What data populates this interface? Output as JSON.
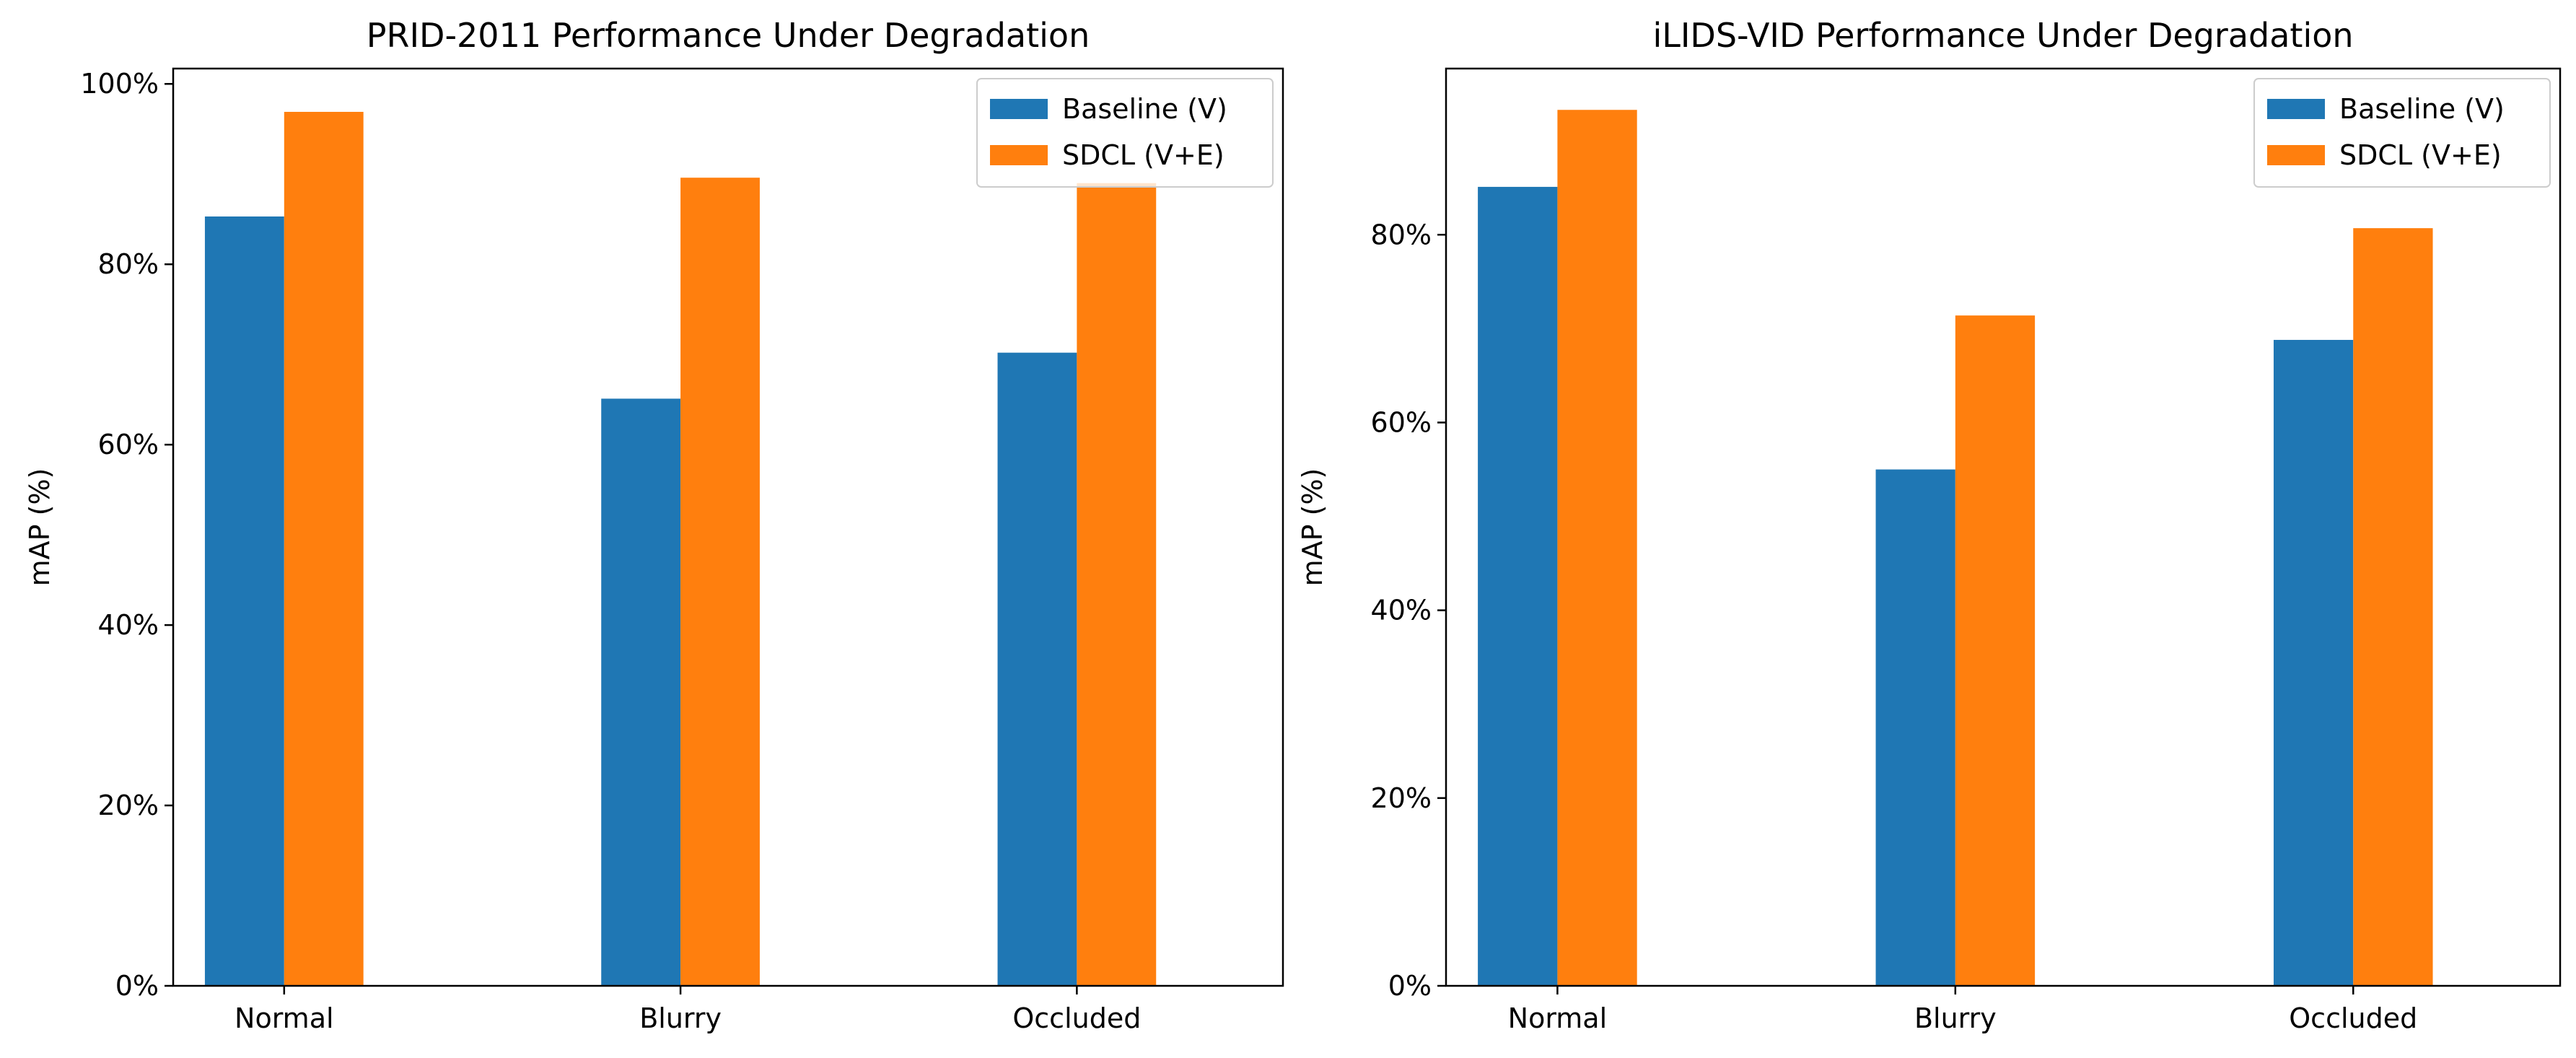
{
  "colors": {
    "baseline": "#1f77b4",
    "sdcl": "#ff7f0e"
  },
  "chart_data": [
    {
      "type": "bar",
      "title": "PRID-2011 Performance Under Degradation",
      "xlabel": "",
      "ylabel": "mAP (%)",
      "categories": [
        "Normal",
        "Blurry",
        "Occluded"
      ],
      "series": [
        {
          "name": "Baseline (V)",
          "values": [
            85.3,
            65.1,
            70.2
          ]
        },
        {
          "name": "SDCL (V+E)",
          "values": [
            96.9,
            89.6,
            89.0
          ]
        }
      ],
      "ylim": [
        0,
        101.7
      ],
      "yticks": [
        0,
        20,
        40,
        60,
        80,
        100
      ],
      "ytick_labels": [
        "0%",
        "20%",
        "40%",
        "60%",
        "80%",
        "100%"
      ],
      "grid": false,
      "legend": "top-right"
    },
    {
      "type": "bar",
      "title": "iLIDS-VID Performance Under Degradation",
      "xlabel": "",
      "ylabel": "mAP (%)",
      "categories": [
        "Normal",
        "Blurry",
        "Occluded"
      ],
      "series": [
        {
          "name": "Baseline (V)",
          "values": [
            85.1,
            55.0,
            68.8
          ]
        },
        {
          "name": "SDCL (V+E)",
          "values": [
            93.3,
            71.4,
            80.7
          ]
        }
      ],
      "ylim": [
        0,
        97.7
      ],
      "yticks": [
        0,
        20,
        40,
        60,
        80
      ],
      "ytick_labels": [
        "0%",
        "20%",
        "40%",
        "60%",
        "80%"
      ],
      "grid": false,
      "legend": "top-right"
    }
  ]
}
